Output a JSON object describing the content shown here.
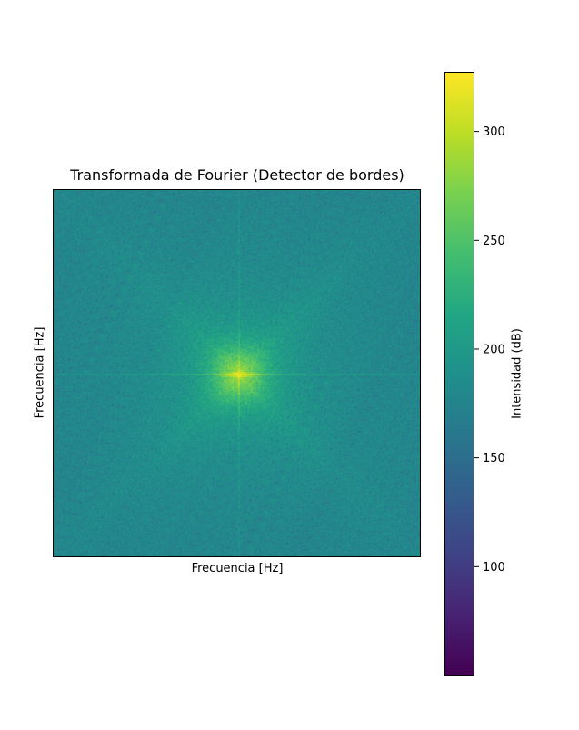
{
  "chart_data": {
    "type": "heatmap",
    "title": "Transformada de Fourier (Detector de bordes)",
    "xlabel": "Frecuencia [Hz]",
    "ylabel": "Frecuencia [Hz]",
    "x_ticks": [],
    "y_ticks": [],
    "colormap": "viridis",
    "colorbar": {
      "label": "Intensidad (dB)",
      "range": [
        50,
        327
      ],
      "ticks": [
        100,
        150,
        200,
        250,
        300
      ],
      "tick_labels": [
        "100",
        "150",
        "200",
        "250",
        "300"
      ]
    },
    "description_values": {
      "background_level": 175,
      "center_peak_level": 320,
      "center_halo_level": 230
    }
  }
}
